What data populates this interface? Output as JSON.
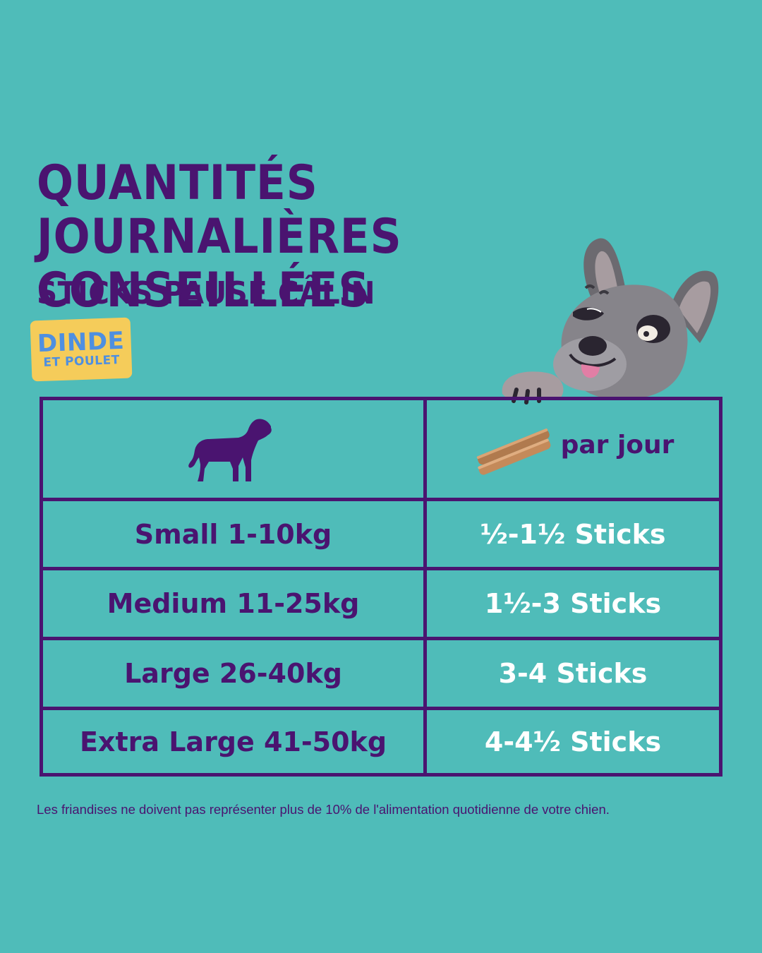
{
  "title": {
    "line1": "QUANTITÉS JOURNALIÈRES",
    "line2": "CONSEILLÉES"
  },
  "subtitle": "STICKS PAUSE CÂLIN",
  "flavor": {
    "main": "DINDE",
    "sub": "ET POULET"
  },
  "table": {
    "header": {
      "left_icon": "dog-silhouette-icon",
      "right_icon": "treat-sticks-icon",
      "right_label": "par jour"
    },
    "rows": [
      {
        "size": "Small 1-10kg",
        "quantity": "½-1½ Sticks"
      },
      {
        "size": "Medium 11-25kg",
        "quantity": "1½-3 Sticks"
      },
      {
        "size": "Large 26-40kg",
        "quantity": "3-4 Sticks"
      },
      {
        "size": "Extra Large 41-50kg",
        "quantity": "4-4½ Sticks"
      }
    ]
  },
  "footnote": "Les friandises ne doivent pas représenter plus de 10% de l'alimentation quotidienne de votre chien.",
  "colors": {
    "background": "#4fbcb9",
    "primary": "#4a1470",
    "badge": "#f5cc5a",
    "badge_text": "#4e8fe0",
    "quantity_text": "#ffffff"
  }
}
